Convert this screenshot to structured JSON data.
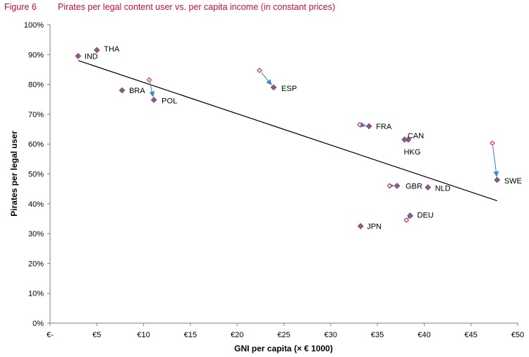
{
  "figure": {
    "label": "Figure 6",
    "title": "Pirates per legal content user vs. per capita income (in constant prices)"
  },
  "colors": {
    "accent": "#c8102e",
    "current_marker": "#8b5a8b",
    "previous_marker": "#c8102e",
    "arrow": "#4a86c5",
    "trend": "#000000"
  },
  "chart_data": {
    "type": "scatter",
    "title": "Pirates per legal content user vs. per capita income (in constant prices)",
    "xlabel": "GNI per capita (× € 1000)",
    "ylabel": "Pirates per legal user",
    "xlim": [
      0,
      50
    ],
    "ylim": [
      0,
      100
    ],
    "x_tick_labels": [
      "€-",
      "€5",
      "€10",
      "€15",
      "€20",
      "€25",
      "€30",
      "€35",
      "€40",
      "€45",
      "€50"
    ],
    "y_tick_labels": [
      "0%",
      "10%",
      "20%",
      "30%",
      "40%",
      "50%",
      "60%",
      "70%",
      "80%",
      "90%",
      "100%"
    ],
    "grid": false,
    "legend": "none",
    "points": [
      {
        "label": "IND",
        "x": 3.0,
        "y": 89.5
      },
      {
        "label": "THA",
        "x": 5.0,
        "y": 91.5
      },
      {
        "label": "BRA",
        "x": 7.7,
        "y": 78.0
      },
      {
        "label": "POL",
        "x": 11.1,
        "y": 74.8
      },
      {
        "label": "ESP",
        "x": 23.9,
        "y": 79.0
      },
      {
        "label": "FRA",
        "x": 34.1,
        "y": 66.0
      },
      {
        "label": "CAN",
        "x": 38.3,
        "y": 61.5
      },
      {
        "label": "HKG",
        "x": 37.9,
        "y": 61.5
      },
      {
        "label": "GBR",
        "x": 37.1,
        "y": 46.0
      },
      {
        "label": "NLD",
        "x": 40.4,
        "y": 45.5
      },
      {
        "label": "DEU",
        "x": 38.5,
        "y": 36.0
      },
      {
        "label": "JPN",
        "x": 33.2,
        "y": 32.5
      },
      {
        "label": "SWE",
        "x": 47.8,
        "y": 48.0
      }
    ],
    "previous_points": [
      {
        "label": "POL",
        "x": 10.6,
        "y": 81.5
      },
      {
        "label": "ESP",
        "x": 22.4,
        "y": 84.7
      },
      {
        "label": "FRA",
        "x": 33.1,
        "y": 66.5
      },
      {
        "label": "GBR",
        "x": 36.3,
        "y": 46.0
      },
      {
        "label": "DEU",
        "x": 38.1,
        "y": 34.5
      },
      {
        "label": "SWE",
        "x": 47.3,
        "y": 60.3
      }
    ],
    "trendline": {
      "x": [
        3.0,
        47.8
      ],
      "y": [
        88.0,
        41.0
      ]
    }
  }
}
